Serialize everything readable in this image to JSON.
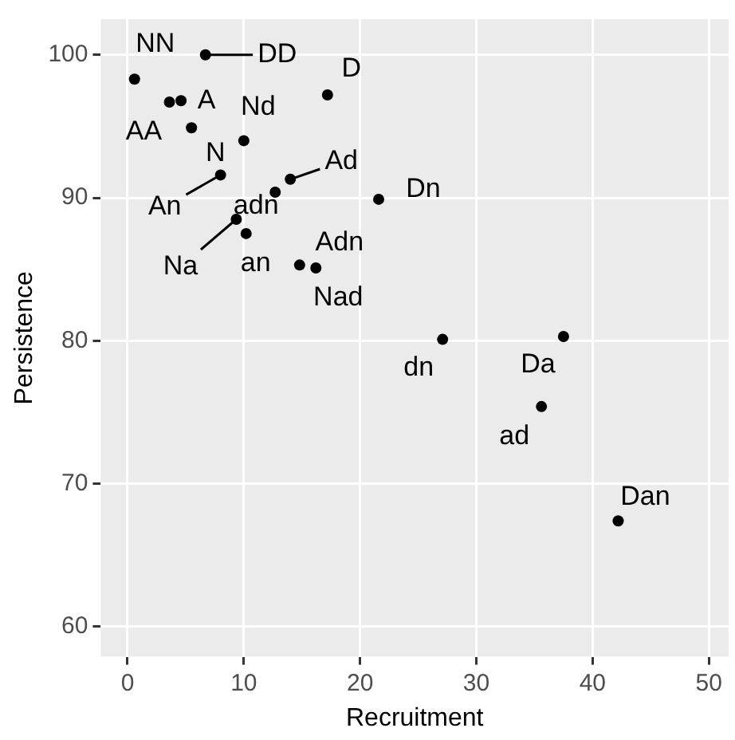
{
  "chart_data": {
    "type": "scatter",
    "xlabel": "Recruitment",
    "ylabel": "Persistence",
    "x": [
      0.6,
      6.7,
      3.6,
      4.6,
      5.5,
      10.0,
      17.2,
      8.0,
      14.0,
      12.7,
      21.6,
      9.35,
      10.2,
      14.8,
      16.2,
      27.1,
      37.5,
      35.6,
      42.2
    ],
    "series": [
      {
        "color": "#000000",
        "values": [
          98.3,
          100,
          96.7,
          96.8,
          94.9,
          94.0,
          97.2,
          91.6,
          91.3,
          90.4,
          89.9,
          88.5,
          87.5,
          85.3,
          85.1,
          80.1,
          80.3,
          75.4,
          67.4
        ]
      }
    ],
    "annotations": [
      {
        "text": "NN",
        "x": 0.6,
        "y": 98.3
      },
      {
        "text": "DD",
        "x": 6.7,
        "y": 100
      },
      {
        "text": "AA",
        "x": 3.6,
        "y": 96.7
      },
      {
        "text": "A",
        "x": 4.6,
        "y": 96.8
      },
      {
        "text": "N",
        "x": 5.5,
        "y": 94.9
      },
      {
        "text": "Nd",
        "x": 10.0,
        "y": 94.0
      },
      {
        "text": "D",
        "x": 17.2,
        "y": 97.2
      },
      {
        "text": "An",
        "x": 8.0,
        "y": 91.6
      },
      {
        "text": "Ad",
        "x": 14.0,
        "y": 91.3
      },
      {
        "text": "adn",
        "x": 12.7,
        "y": 90.4
      },
      {
        "text": "Dn",
        "x": 21.6,
        "y": 89.9
      },
      {
        "text": "Na",
        "x": 9.35,
        "y": 88.5
      },
      {
        "text": "an",
        "x": 10.2,
        "y": 87.5
      },
      {
        "text": "Adn",
        "x": 14.8,
        "y": 85.3
      },
      {
        "text": "Nad",
        "x": 16.2,
        "y": 85.1
      },
      {
        "text": "dn",
        "x": 27.1,
        "y": 80.1
      },
      {
        "text": "Da",
        "x": 37.5,
        "y": 80.3
      },
      {
        "text": "ad",
        "x": 35.6,
        "y": 75.4
      },
      {
        "text": "Dan",
        "x": 42.2,
        "y": 67.4
      }
    ],
    "xlim": [
      -2.3,
      51.7
    ],
    "ylim": [
      57.9,
      102.5
    ],
    "xticks": [
      0,
      10,
      20,
      30,
      40,
      50
    ],
    "yticks": [
      60,
      70,
      80,
      90,
      100
    ],
    "grid": true,
    "legend": false,
    "marker": "circle"
  }
}
